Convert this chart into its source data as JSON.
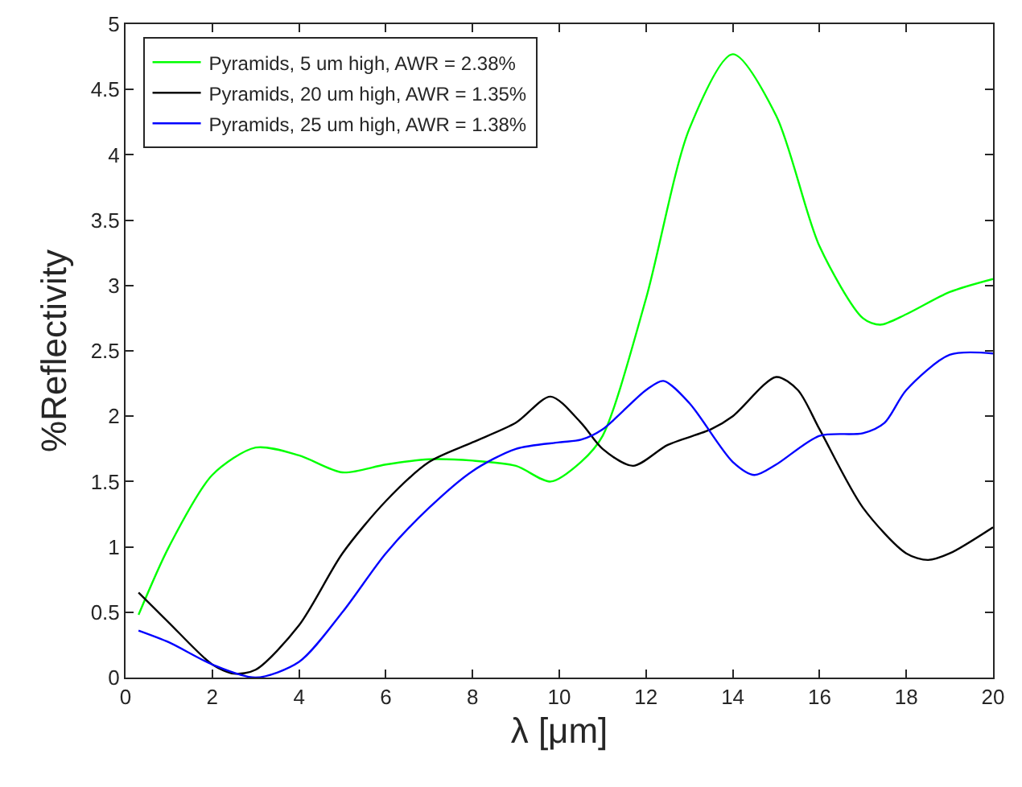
{
  "chart_data": {
    "type": "line",
    "xlabel": "λ [μm]",
    "ylabel": "%Reflectivity",
    "xlim": [
      0,
      20
    ],
    "xticks": [
      0,
      2,
      4,
      6,
      8,
      10,
      12,
      14,
      16,
      18,
      20
    ],
    "ylim": [
      0,
      5
    ],
    "yticks": [
      0,
      0.5,
      1,
      1.5,
      2,
      2.5,
      3,
      3.5,
      4,
      4.5,
      5
    ],
    "legend": "top left",
    "marker": "none",
    "line_style": "solid",
    "series": [
      {
        "name": "Pyramids, 5 um high, AWR = 2.38%",
        "color": "#00ff00",
        "x": [
          0.3,
          1,
          2,
          3,
          4,
          5,
          6,
          7,
          8,
          9,
          9.8,
          10.5,
          11,
          12,
          13,
          14,
          15,
          16,
          17,
          17.4,
          18,
          19,
          20
        ],
        "values": [
          0.48,
          1.0,
          1.55,
          1.76,
          1.7,
          1.57,
          1.63,
          1.67,
          1.66,
          1.62,
          1.5,
          1.65,
          1.85,
          2.9,
          4.2,
          4.77,
          4.3,
          3.3,
          2.75,
          2.7,
          2.78,
          2.95,
          3.05
        ]
      },
      {
        "name": "Pyramids, 20 um high, AWR = 1.35%",
        "color": "#000000",
        "x": [
          0.3,
          1,
          2,
          2.5,
          3,
          4,
          5,
          6,
          7,
          8,
          9,
          9.8,
          10.5,
          11,
          11.7,
          12.5,
          13.5,
          14,
          15,
          15.5,
          16,
          17,
          18,
          18.5,
          19,
          20
        ],
        "values": [
          0.65,
          0.42,
          0.1,
          0.03,
          0.06,
          0.4,
          0.95,
          1.35,
          1.65,
          1.8,
          1.95,
          2.15,
          1.95,
          1.75,
          1.62,
          1.78,
          1.9,
          2.0,
          2.3,
          2.2,
          1.9,
          1.3,
          0.95,
          0.9,
          0.95,
          1.15
        ]
      },
      {
        "name": "Pyramids, 25 um high, AWR = 1.38%",
        "color": "#0000ff",
        "x": [
          0.3,
          1,
          2,
          3,
          4,
          5,
          6,
          7,
          8,
          9,
          10,
          10.5,
          11,
          12,
          12.4,
          13,
          14,
          14.5,
          15,
          16,
          17,
          17.5,
          18,
          19,
          20
        ],
        "values": [
          0.36,
          0.27,
          0.1,
          0.0,
          0.12,
          0.5,
          0.95,
          1.3,
          1.58,
          1.75,
          1.8,
          1.82,
          1.9,
          2.2,
          2.27,
          2.1,
          1.65,
          1.55,
          1.63,
          1.85,
          1.87,
          1.95,
          2.2,
          2.47,
          2.48
        ]
      }
    ]
  }
}
